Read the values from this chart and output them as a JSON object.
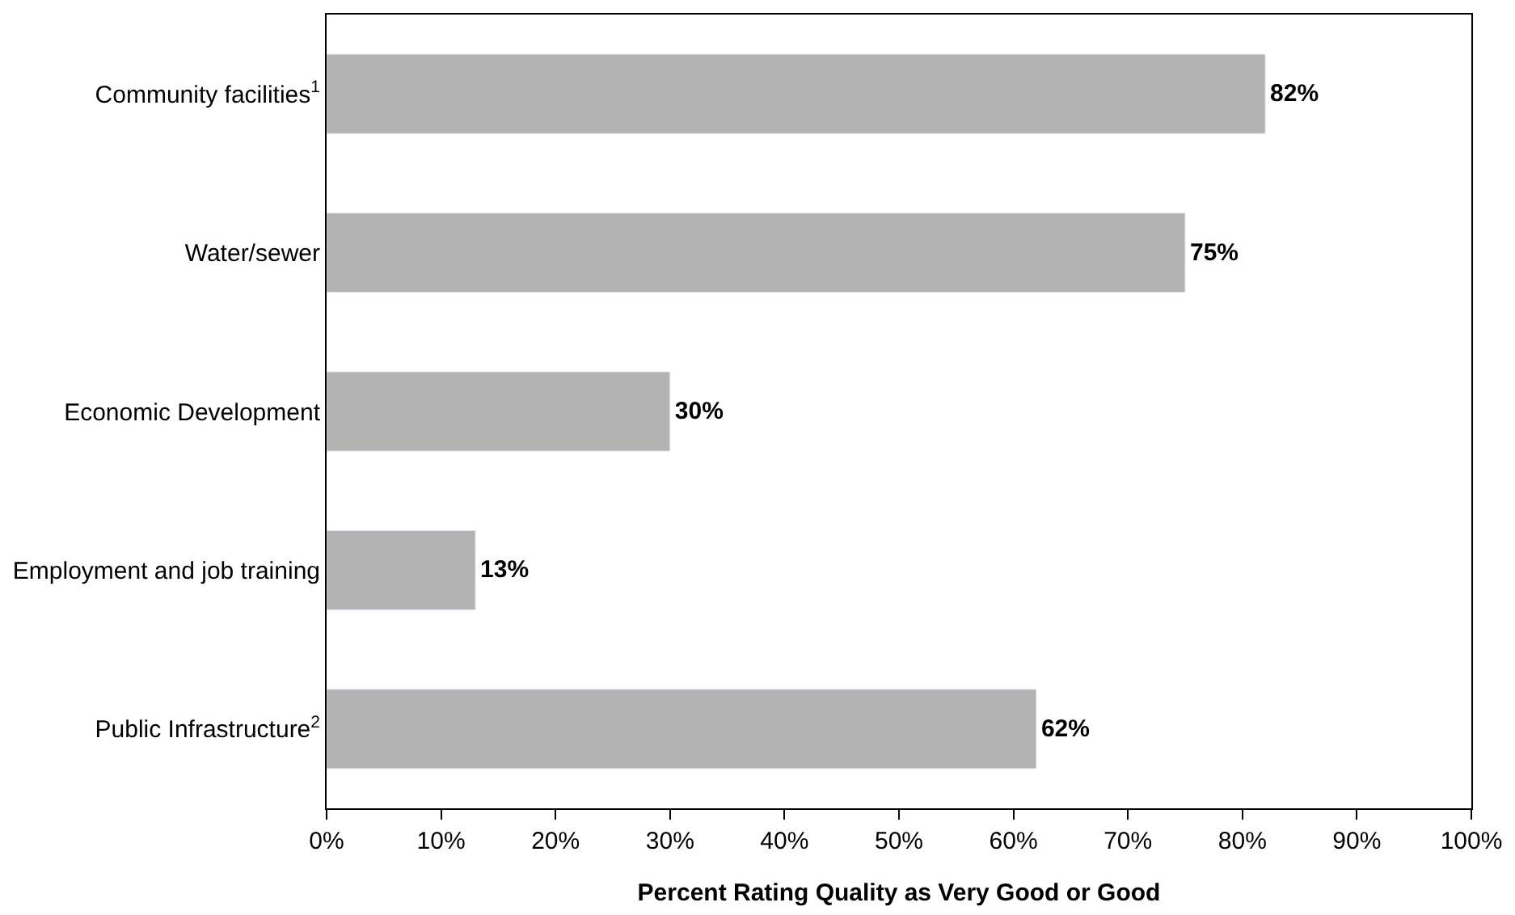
{
  "chart_data": {
    "type": "bar",
    "orientation": "horizontal",
    "xlabel": "Percent Rating Quality as Very Good or Good",
    "categories": [
      "Community facilities$^{1}$",
      "Water/sewer",
      "Economic Development",
      "Employment and job training",
      "Public Infrastructure$^{2}$"
    ],
    "values": [
      82,
      75,
      30,
      13,
      62
    ],
    "value_labels": [
      "82%",
      "75%",
      "30%",
      "13%",
      "62%"
    ],
    "color": "#b3b3b3",
    "xlim": [
      0,
      100
    ],
    "xticks": [
      {
        "value": 0,
        "label": "0%"
      },
      {
        "value": 10,
        "label": "10%"
      },
      {
        "value": 20,
        "label": "20%"
      },
      {
        "value": 30,
        "label": "30%"
      },
      {
        "value": 40,
        "label": "40%"
      },
      {
        "value": 50,
        "label": "50%"
      },
      {
        "value": 60,
        "label": "60%"
      },
      {
        "value": 70,
        "label": "70%"
      },
      {
        "value": 80,
        "label": "80%"
      },
      {
        "value": 90,
        "label": "90%"
      },
      {
        "value": 100,
        "label": "100%"
      }
    ],
    "grid": false
  }
}
